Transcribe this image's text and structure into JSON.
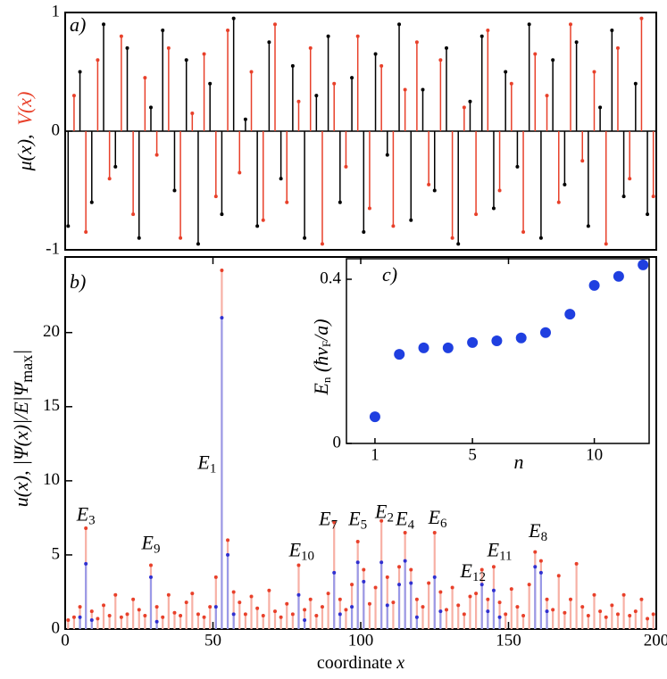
{
  "chart_data": [
    {
      "type": "stem",
      "panel_label": "a)",
      "ylabel_parts": [
        "μ(x),",
        "V(x)"
      ],
      "ylim": [
        -1,
        1
      ],
      "yticks": [
        -1,
        0,
        1
      ],
      "xlim": [
        0,
        200
      ],
      "series": [
        {
          "color": "#000000",
          "x": [
            1,
            5,
            9,
            13,
            17,
            21,
            25,
            29,
            33,
            37,
            41,
            45,
            49,
            53,
            57,
            61,
            65,
            69,
            73,
            77,
            81,
            85,
            89,
            93,
            97,
            101,
            105,
            109,
            113,
            117,
            121,
            125,
            129,
            133,
            137,
            141,
            145,
            149,
            153,
            157,
            161,
            165,
            169,
            173,
            177,
            181,
            185,
            189,
            193,
            197
          ],
          "values": [
            -0.8,
            0.5,
            -0.6,
            0.9,
            -0.3,
            0.7,
            -0.9,
            0.2,
            0.85,
            -0.5,
            0.6,
            -0.95,
            0.4,
            -0.7,
            0.95,
            0.1,
            -0.8,
            0.75,
            -0.4,
            0.55,
            -0.9,
            0.3,
            0.8,
            -0.6,
            0.45,
            -0.85,
            0.65,
            -0.2,
            0.9,
            -0.75,
            0.35,
            -0.5,
            0.7,
            -0.95,
            0.25,
            0.8,
            -0.65,
            0.5,
            -0.3,
            0.9,
            -0.9,
            0.6,
            -0.45,
            0.75,
            -0.8,
            0.2,
            0.85,
            -0.55,
            0.4,
            -0.7
          ]
        },
        {
          "color": "#e8402a",
          "x": [
            3,
            7,
            11,
            15,
            19,
            23,
            27,
            31,
            35,
            39,
            43,
            47,
            51,
            55,
            59,
            63,
            67,
            71,
            75,
            79,
            83,
            87,
            91,
            95,
            99,
            103,
            107,
            111,
            115,
            119,
            123,
            127,
            131,
            135,
            139,
            143,
            147,
            151,
            155,
            159,
            163,
            167,
            171,
            175,
            179,
            183,
            187,
            191,
            195,
            199
          ],
          "values": [
            0.3,
            -0.85,
            0.6,
            -0.4,
            0.8,
            -0.7,
            0.45,
            -0.2,
            0.7,
            -0.9,
            0.15,
            0.65,
            -0.55,
            0.85,
            -0.35,
            0.5,
            -0.75,
            0.9,
            -0.6,
            0.25,
            0.7,
            -0.95,
            0.4,
            -0.3,
            0.8,
            -0.65,
            0.55,
            -0.8,
            0.35,
            0.75,
            -0.45,
            0.6,
            -0.9,
            0.2,
            -0.7,
            0.85,
            -0.5,
            0.4,
            -0.85,
            0.65,
            0.3,
            -0.6,
            0.9,
            -0.25,
            0.5,
            -0.95,
            0.7,
            -0.4,
            0.95,
            -0.55
          ]
        }
      ]
    },
    {
      "type": "stem",
      "panel_label": "b)",
      "xlabel_parts": [
        "coordinate ",
        "x"
      ],
      "ylabel_parts": [
        "u(x),  |Ψ(x)|/",
        "E",
        "|Ψ",
        "max",
        "|"
      ],
      "xlim": [
        0,
        200
      ],
      "xticks": [
        0,
        50,
        100,
        150,
        200
      ],
      "ylim": [
        0,
        25.1
      ],
      "yticks": [
        0,
        5,
        10,
        15,
        20
      ],
      "series": [
        {
          "color": "#e8402a",
          "x": [
            1,
            3,
            5,
            7,
            9,
            11,
            13,
            15,
            17,
            19,
            21,
            23,
            25,
            27,
            29,
            31,
            33,
            35,
            37,
            39,
            41,
            43,
            45,
            47,
            49,
            51,
            53,
            55,
            57,
            59,
            61,
            63,
            65,
            67,
            69,
            71,
            73,
            75,
            77,
            79,
            81,
            83,
            85,
            87,
            89,
            91,
            93,
            95,
            97,
            99,
            101,
            103,
            105,
            107,
            109,
            111,
            113,
            115,
            117,
            119,
            121,
            123,
            125,
            127,
            129,
            131,
            133,
            135,
            137,
            139,
            141,
            143,
            145,
            147,
            149,
            151,
            153,
            155,
            157,
            159,
            161,
            163,
            165,
            167,
            169,
            171,
            173,
            175,
            177,
            179,
            181,
            183,
            185,
            187,
            189,
            191,
            193,
            195,
            197,
            199
          ],
          "values": [
            0.6,
            0.8,
            1.5,
            6.8,
            1.2,
            0.7,
            1.6,
            0.9,
            2.3,
            0.8,
            1.0,
            2.0,
            1.3,
            0.9,
            4.3,
            1.5,
            0.8,
            2.3,
            1.1,
            0.9,
            1.8,
            2.4,
            1.0,
            0.8,
            1.5,
            3.5,
            24.2,
            6.0,
            2.5,
            1.8,
            1.0,
            2.2,
            1.4,
            0.9,
            2.6,
            1.2,
            0.8,
            1.7,
            1.0,
            4.3,
            1.3,
            2.0,
            0.9,
            1.5,
            2.4,
            7.2,
            2.0,
            1.3,
            3.0,
            5.9,
            4.0,
            1.7,
            2.8,
            7.3,
            3.5,
            1.8,
            4.2,
            6.5,
            4.0,
            2.0,
            1.5,
            3.1,
            6.5,
            2.5,
            1.3,
            2.8,
            1.6,
            1.0,
            2.2,
            2.4,
            4.0,
            2.0,
            4.2,
            1.8,
            1.0,
            2.7,
            1.5,
            0.9,
            3.0,
            5.2,
            4.6,
            2.0,
            1.3,
            3.6,
            1.1,
            2.0,
            4.4,
            1.5,
            0.9,
            2.3,
            1.2,
            0.8,
            1.6,
            1.0,
            2.3,
            0.9,
            1.2,
            2.0,
            0.7,
            1.0
          ]
        },
        {
          "color": "#3030d0",
          "x": [
            5,
            7,
            9,
            29,
            31,
            51,
            53,
            55,
            57,
            79,
            81,
            91,
            93,
            97,
            99,
            101,
            107,
            109,
            113,
            115,
            117,
            119,
            125,
            127,
            141,
            143,
            145,
            147,
            159,
            161,
            163
          ],
          "values": [
            0.8,
            4.4,
            0.6,
            3.5,
            0.5,
            1.5,
            21,
            5.0,
            1.0,
            2.3,
            0.6,
            3.8,
            1.0,
            1.5,
            4.5,
            3.2,
            4.5,
            1.6,
            3.0,
            4.6,
            3.1,
            0.8,
            3.5,
            1.2,
            3.0,
            1.2,
            2.6,
            0.8,
            4.2,
            3.8,
            1.2
          ]
        }
      ],
      "annotations": [
        {
          "text": "E",
          "sub": "3"
        },
        {
          "text": "E",
          "sub": "9"
        },
        {
          "text": "E",
          "sub": "1"
        },
        {
          "text": "E",
          "sub": "10"
        },
        {
          "text": "E",
          "sub": "7"
        },
        {
          "text": "E",
          "sub": "5"
        },
        {
          "text": "E",
          "sub": "2"
        },
        {
          "text": "E",
          "sub": "4"
        },
        {
          "text": "E",
          "sub": "6"
        },
        {
          "text": "E",
          "sub": "12"
        },
        {
          "text": "E",
          "sub": "11"
        },
        {
          "text": "E",
          "sub": "8"
        }
      ]
    },
    {
      "type": "scatter",
      "panel_label": "c)",
      "xlabel": "n",
      "ylabel_parts": [
        "E",
        "n",
        " (ħv",
        "F",
        "/a)"
      ],
      "color": "#1f3fe0",
      "x": [
        1,
        2,
        3,
        4,
        5,
        6,
        7,
        8,
        9,
        10,
        11,
        12
      ],
      "values": [
        0.065,
        0.217,
        0.233,
        0.233,
        0.246,
        0.25,
        0.257,
        0.27,
        0.315,
        0.385,
        0.407,
        0.435
      ],
      "xlim": [
        -0.17,
        12.25
      ],
      "xticks": [
        1,
        5,
        10
      ],
      "ylim": [
        0,
        0.45
      ],
      "yticks": [
        0,
        0.4
      ]
    }
  ]
}
